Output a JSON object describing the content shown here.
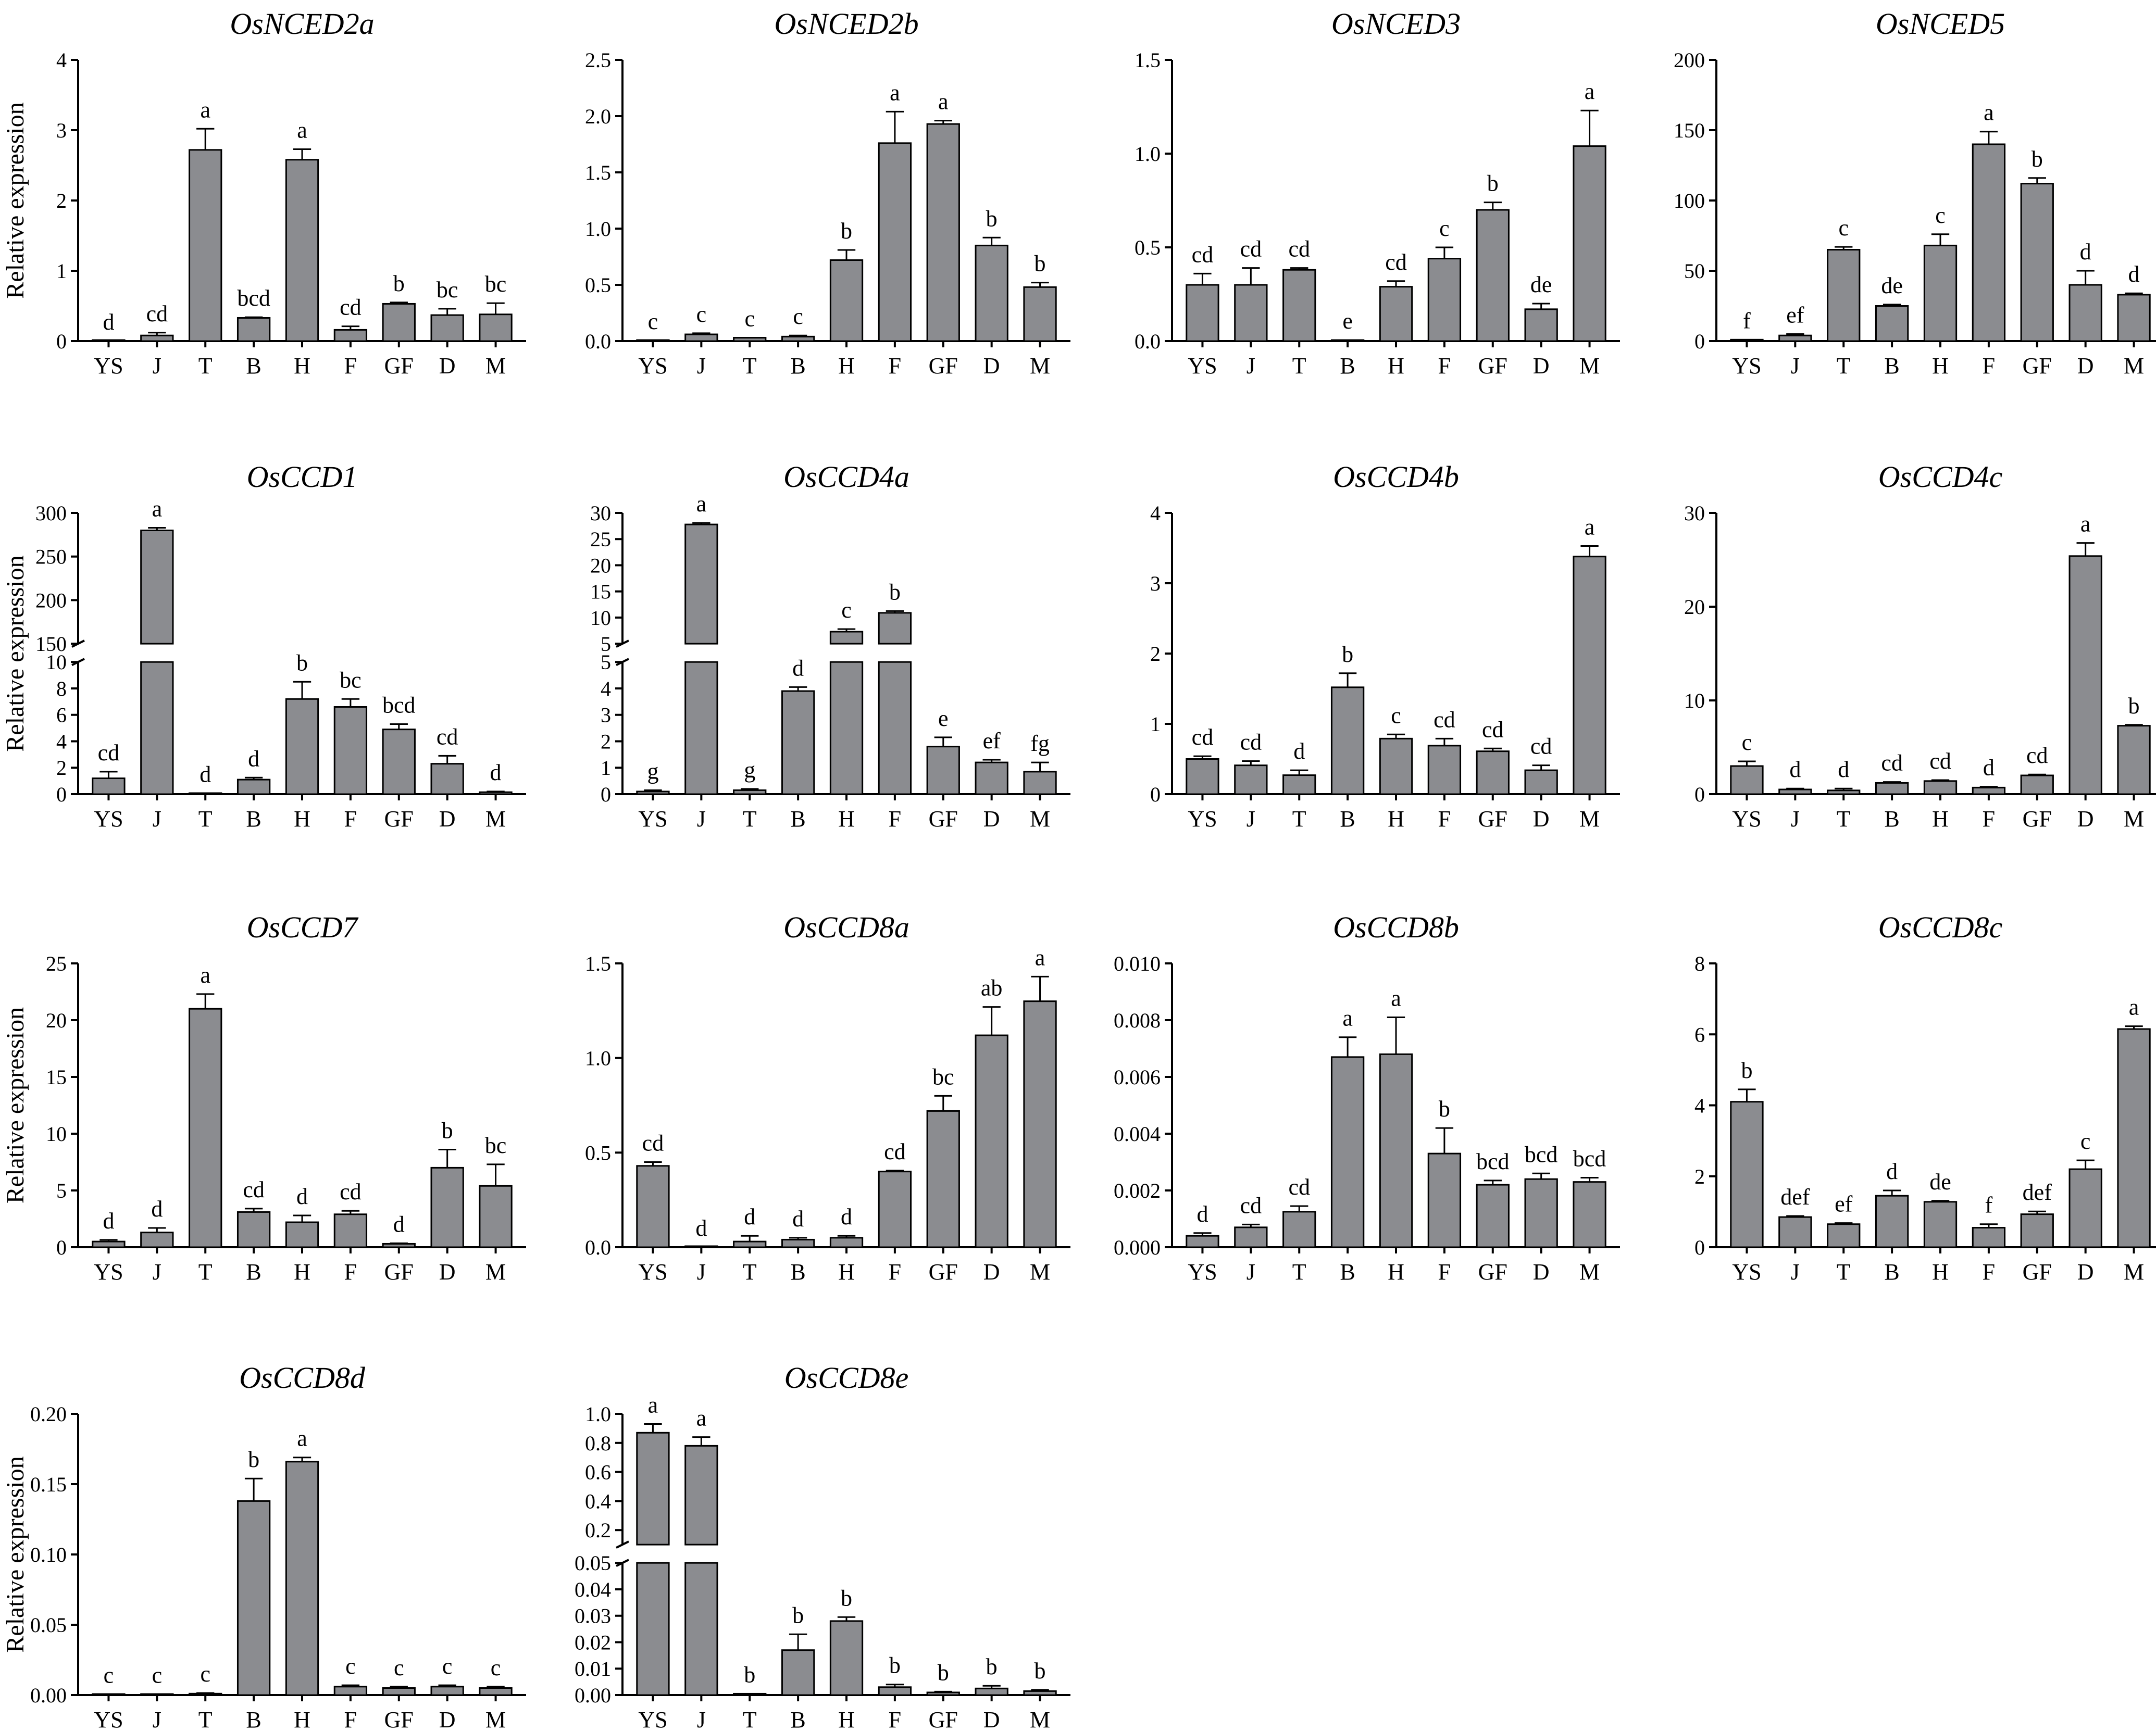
{
  "figure": {
    "ylabel": "Relative expression",
    "categories": [
      "YS",
      "J",
      "T",
      "B",
      "H",
      "F",
      "GF",
      "D",
      "M"
    ]
  },
  "chart_data": [
    {
      "type": "bar",
      "title": "OsNCED2a",
      "ylabel": "Relative expression",
      "ylim": [
        0,
        4
      ],
      "yticks": [
        0,
        1,
        2,
        3,
        4
      ],
      "values": [
        0,
        0.08,
        2.72,
        0.33,
        2.58,
        0.16,
        0.53,
        0.37,
        0.38
      ],
      "errors": [
        0,
        0.04,
        0.3,
        0.01,
        0.15,
        0.05,
        0.02,
        0.09,
        0.16
      ],
      "letters": [
        "d",
        "cd",
        "a",
        "bcd",
        "a",
        "cd",
        "b",
        "bc",
        "bc"
      ]
    },
    {
      "type": "bar",
      "title": "OsNCED2b",
      "ylabel": "",
      "ylim": [
        0,
        2.5
      ],
      "yticks": [
        0,
        0.5,
        1.0,
        1.5,
        2.0,
        2.5
      ],
      "tick_labels": [
        "0.0",
        "0.5",
        "1.0",
        "1.5",
        "2.0",
        "2.5"
      ],
      "values": [
        0.005,
        0.06,
        0.03,
        0.04,
        0.72,
        1.76,
        1.93,
        0.85,
        0.48
      ],
      "errors": [
        0,
        0.01,
        0,
        0.01,
        0.09,
        0.28,
        0.03,
        0.07,
        0.04
      ],
      "letters": [
        "c",
        "c",
        "c",
        "c",
        "b",
        "a",
        "a",
        "b",
        "b"
      ]
    },
    {
      "type": "bar",
      "title": "OsNCED3",
      "ylabel": "",
      "ylim": [
        0,
        1.5
      ],
      "yticks": [
        0,
        0.5,
        1.0,
        1.5
      ],
      "tick_labels": [
        "0.0",
        "0.5",
        "1.0",
        "1.5"
      ],
      "values": [
        0.3,
        0.3,
        0.38,
        0.005,
        0.29,
        0.44,
        0.7,
        0.17,
        1.04
      ],
      "errors": [
        0.06,
        0.09,
        0.01,
        0,
        0.03,
        0.06,
        0.04,
        0.03,
        0.19
      ],
      "letters": [
        "cd",
        "cd",
        "cd",
        "e",
        "cd",
        "c",
        "b",
        "de",
        "a"
      ]
    },
    {
      "type": "bar",
      "title": "OsNCED5",
      "ylabel": "",
      "ylim": [
        0,
        200
      ],
      "yticks": [
        0,
        50,
        100,
        150,
        200
      ],
      "values": [
        1,
        4,
        65,
        25,
        68,
        140,
        112,
        40,
        33
      ],
      "errors": [
        0,
        1,
        2,
        1,
        8,
        9,
        4,
        10,
        1
      ],
      "letters": [
        "f",
        "ef",
        "c",
        "de",
        "c",
        "a",
        "b",
        "d",
        "d"
      ]
    },
    {
      "type": "bar",
      "title": "OsCCD1",
      "ylabel": "Relative expression",
      "broken_axis": true,
      "lower_ylim": [
        0,
        10
      ],
      "lower_ticks": [
        0,
        2,
        4,
        6,
        8,
        10
      ],
      "upper_ylim": [
        150,
        300
      ],
      "upper_ticks": [
        150,
        200,
        250,
        300
      ],
      "values": [
        1.2,
        280,
        0.05,
        1.1,
        7.2,
        6.6,
        4.9,
        2.3,
        0.15
      ],
      "errors": [
        0.5,
        3,
        0,
        0.15,
        1.3,
        0.6,
        0.4,
        0.6,
        0.05
      ],
      "letters": [
        "cd",
        "a",
        "d",
        "d",
        "b",
        "bc",
        "bcd",
        "cd",
        "d"
      ]
    },
    {
      "type": "bar",
      "title": "OsCCD4a",
      "ylabel": "",
      "broken_axis": true,
      "lower_ylim": [
        0,
        5
      ],
      "lower_ticks": [
        0,
        1,
        2,
        3,
        4,
        5
      ],
      "upper_ylim": [
        5,
        30
      ],
      "upper_ticks": [
        5,
        10,
        15,
        20,
        25,
        30
      ],
      "values": [
        0.1,
        27.8,
        0.15,
        3.9,
        7.3,
        10.9,
        1.8,
        1.2,
        0.85
      ],
      "errors": [
        0.05,
        0.3,
        0.05,
        0.15,
        0.5,
        0.35,
        0.35,
        0.1,
        0.35
      ],
      "letters": [
        "g",
        "a",
        "g",
        "d",
        "c",
        "b",
        "e",
        "ef",
        "fg"
      ]
    },
    {
      "type": "bar",
      "title": "OsCCD4b",
      "ylabel": "",
      "ylim": [
        0,
        4
      ],
      "yticks": [
        0,
        1,
        2,
        3,
        4
      ],
      "values": [
        0.5,
        0.41,
        0.27,
        1.52,
        0.79,
        0.69,
        0.61,
        0.34,
        3.38
      ],
      "errors": [
        0.04,
        0.06,
        0.07,
        0.2,
        0.06,
        0.1,
        0.04,
        0.07,
        0.15
      ],
      "letters": [
        "cd",
        "cd",
        "d",
        "b",
        "c",
        "cd",
        "cd",
        "cd",
        "a"
      ]
    },
    {
      "type": "bar",
      "title": "OsCCD4c",
      "ylabel": "",
      "ylim": [
        0,
        30
      ],
      "yticks": [
        0,
        10,
        20,
        30
      ],
      "values": [
        3,
        0.5,
        0.4,
        1.2,
        1.4,
        0.7,
        2,
        25.4,
        7.3
      ],
      "errors": [
        0.5,
        0.1,
        0.2,
        0.1,
        0.1,
        0.1,
        0.1,
        1.4,
        0.1
      ],
      "letters": [
        "c",
        "d",
        "d",
        "cd",
        "cd",
        "d",
        "cd",
        "a",
        "b"
      ]
    },
    {
      "type": "bar",
      "title": "OsCCD7",
      "ylabel": "Relative expression",
      "ylim": [
        0,
        25
      ],
      "yticks": [
        0,
        5,
        10,
        15,
        20,
        25
      ],
      "values": [
        0.5,
        1.3,
        21,
        3.1,
        2.2,
        2.9,
        0.3,
        7,
        5.4
      ],
      "errors": [
        0.15,
        0.4,
        1.3,
        0.3,
        0.6,
        0.3,
        0.05,
        1.6,
        1.9
      ],
      "letters": [
        "d",
        "d",
        "a",
        "cd",
        "d",
        "cd",
        "d",
        "b",
        "bc"
      ]
    },
    {
      "type": "bar",
      "title": "OsCCD8a",
      "ylabel": "",
      "ylim": [
        0,
        1.5
      ],
      "yticks": [
        0,
        0.5,
        1.0,
        1.5
      ],
      "tick_labels": [
        "0.0",
        "0.5",
        "1.0",
        "1.5"
      ],
      "values": [
        0.43,
        0,
        0.03,
        0.04,
        0.05,
        0.4,
        0.72,
        1.12,
        1.3
      ],
      "errors": [
        0.02,
        0,
        0.03,
        0.01,
        0.01,
        0.005,
        0.08,
        0.15,
        0.13
      ],
      "letters": [
        "cd",
        "d",
        "d",
        "d",
        "d",
        "cd",
        "bc",
        "ab",
        "a"
      ]
    },
    {
      "type": "bar",
      "title": "OsCCD8b",
      "ylabel": "",
      "ylim": [
        0,
        0.01
      ],
      "yticks": [
        0,
        0.002,
        0.004,
        0.006,
        0.008,
        0.01
      ],
      "tick_labels": [
        "0.000",
        "0.002",
        "0.004",
        "0.006",
        "0.008",
        "0.010"
      ],
      "values": [
        0.0004,
        0.0007,
        0.00125,
        0.0067,
        0.0068,
        0.0033,
        0.0022,
        0.0024,
        0.0023
      ],
      "errors": [
        0.0001,
        0.0001,
        0.0002,
        0.0007,
        0.0013,
        0.0009,
        0.00015,
        0.0002,
        0.00015
      ],
      "letters": [
        "d",
        "cd",
        "cd",
        "a",
        "a",
        "b",
        "bcd",
        "bcd",
        "bcd"
      ]
    },
    {
      "type": "bar",
      "title": "OsCCD8c",
      "ylabel": "",
      "ylim": [
        0,
        8
      ],
      "yticks": [
        0,
        2,
        4,
        6,
        8
      ],
      "values": [
        4.1,
        0.85,
        0.65,
        1.45,
        1.28,
        0.55,
        0.93,
        2.2,
        6.15
      ],
      "errors": [
        0.35,
        0.03,
        0.03,
        0.15,
        0.03,
        0.1,
        0.08,
        0.25,
        0.08
      ],
      "letters": [
        "b",
        "def",
        "ef",
        "d",
        "de",
        "f",
        "def",
        "c",
        "a"
      ]
    },
    {
      "type": "bar",
      "title": "OsCCD8d",
      "ylabel": "Relative expression",
      "ylim": [
        0,
        0.2
      ],
      "yticks": [
        0,
        0.05,
        0.1,
        0.15,
        0.2
      ],
      "tick_labels": [
        "0.00",
        "0.05",
        "0.10",
        "0.15",
        "0.20"
      ],
      "values": [
        0.0005,
        0.0005,
        0.001,
        0.138,
        0.166,
        0.006,
        0.005,
        0.006,
        0.005
      ],
      "errors": [
        0,
        0,
        0.0005,
        0.016,
        0.003,
        0.001,
        0.001,
        0.001,
        0.001
      ],
      "letters": [
        "c",
        "c",
        "c",
        "b",
        "a",
        "c",
        "c",
        "c",
        "c"
      ]
    },
    {
      "type": "bar",
      "title": "OsCCD8e",
      "ylabel": "",
      "broken_axis": true,
      "lower_ylim": [
        0,
        0.05
      ],
      "lower_ticks": [
        0,
        0.01,
        0.02,
        0.03,
        0.04,
        0.05
      ],
      "lower_tick_labels": [
        "0.00",
        "0.01",
        "0.02",
        "0.03",
        "0.04",
        "0.05"
      ],
      "upper_ylim": [
        0.1,
        1.0
      ],
      "upper_ticks": [
        0.2,
        0.4,
        0.6,
        0.8,
        1.0
      ],
      "upper_tick_labels": [
        "0.2",
        "0.4",
        "0.6",
        "0.8",
        "1.0"
      ],
      "values": [
        0.87,
        0.78,
        0.0005,
        0.017,
        0.028,
        0.003,
        0.001,
        0.0025,
        0.0015
      ],
      "errors": [
        0.06,
        0.06,
        0,
        0.006,
        0.0015,
        0.001,
        0.0003,
        0.001,
        0.0005
      ],
      "letters": [
        "a",
        "a",
        "b",
        "b",
        "b",
        "b",
        "b",
        "b",
        "b"
      ]
    }
  ]
}
